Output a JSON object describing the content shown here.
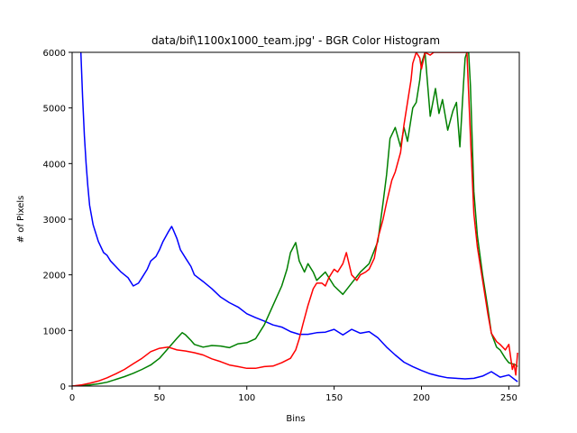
{
  "chart_data": {
    "type": "line",
    "title": "data/bif\\1100x1000_team.jpg' - BGR Color Histogram",
    "xlabel": "Bins",
    "ylabel": "# of Pixels",
    "xlim": [
      0,
      256
    ],
    "ylim": [
      0,
      6000
    ],
    "xticks": [
      0,
      50,
      100,
      150,
      200,
      250
    ],
    "yticks": [
      0,
      1000,
      2000,
      3000,
      4000,
      5000,
      6000
    ],
    "grid": false,
    "legend": "none",
    "series": [
      {
        "color": "#0000ff",
        "x": [
          5,
          6,
          7,
          8,
          9,
          10,
          12,
          15,
          18,
          20,
          22,
          25,
          28,
          30,
          32,
          35,
          38,
          40,
          43,
          45,
          48,
          50,
          52,
          55,
          57,
          58,
          60,
          62,
          65,
          68,
          70,
          75,
          80,
          85,
          90,
          95,
          100,
          105,
          110,
          115,
          120,
          125,
          130,
          135,
          140,
          145,
          150,
          155,
          160,
          165,
          170,
          175,
          180,
          185,
          190,
          195,
          200,
          205,
          210,
          215,
          220,
          225,
          230,
          235,
          240,
          245,
          250,
          255
        ],
        "values": [
          6000,
          5200,
          4500,
          4000,
          3600,
          3250,
          2900,
          2600,
          2400,
          2350,
          2250,
          2150,
          2050,
          2000,
          1950,
          1800,
          1850,
          1950,
          2100,
          2250,
          2330,
          2450,
          2600,
          2770,
          2870,
          2800,
          2650,
          2450,
          2300,
          2150,
          2000,
          1880,
          1750,
          1600,
          1500,
          1420,
          1300,
          1230,
          1170,
          1100,
          1060,
          980,
          930,
          930,
          960,
          970,
          1020,
          920,
          1020,
          950,
          980,
          870,
          700,
          560,
          430,
          350,
          280,
          220,
          180,
          150,
          140,
          130,
          140,
          180,
          260,
          160,
          200,
          80
        ]
      },
      {
        "color": "#008000",
        "x": [
          0,
          5,
          10,
          15,
          20,
          25,
          30,
          35,
          40,
          45,
          50,
          55,
          60,
          63,
          65,
          68,
          70,
          75,
          80,
          85,
          90,
          95,
          100,
          105,
          110,
          115,
          120,
          123,
          125,
          128,
          130,
          133,
          135,
          138,
          140,
          145,
          150,
          155,
          160,
          165,
          170,
          175,
          178,
          180,
          182,
          185,
          188,
          190,
          192,
          195,
          197,
          199,
          200,
          202,
          205,
          208,
          210,
          212,
          215,
          218,
          220,
          222,
          224,
          225,
          226,
          227,
          228,
          230,
          232,
          235,
          238,
          240,
          243,
          245,
          248,
          250,
          252,
          254,
          255
        ],
        "values": [
          0,
          10,
          20,
          40,
          70,
          120,
          170,
          230,
          300,
          380,
          500,
          680,
          860,
          960,
          920,
          820,
          750,
          700,
          730,
          720,
          690,
          760,
          780,
          850,
          1100,
          1450,
          1800,
          2100,
          2400,
          2580,
          2250,
          2050,
          2200,
          2050,
          1900,
          2050,
          1800,
          1650,
          1850,
          2050,
          2200,
          2600,
          3300,
          3800,
          4450,
          4650,
          4300,
          4650,
          4400,
          5000,
          5100,
          5500,
          5800,
          6000,
          4850,
          5350,
          4900,
          5150,
          4600,
          4950,
          5100,
          4300,
          5400,
          5900,
          6000,
          6000,
          5400,
          3500,
          2700,
          2000,
          1400,
          950,
          700,
          650,
          500,
          420,
          400,
          380,
          350
        ]
      },
      {
        "color": "#ff0000",
        "x": [
          0,
          5,
          10,
          15,
          20,
          25,
          30,
          35,
          40,
          45,
          50,
          55,
          60,
          65,
          70,
          75,
          80,
          85,
          90,
          95,
          100,
          105,
          110,
          115,
          120,
          125,
          128,
          130,
          132,
          135,
          138,
          140,
          143,
          145,
          147,
          150,
          152,
          155,
          157,
          160,
          163,
          165,
          168,
          170,
          173,
          175,
          178,
          180,
          183,
          185,
          188,
          190,
          192,
          194,
          195,
          197,
          199,
          200,
          202,
          205,
          207,
          210,
          213,
          215,
          218,
          220,
          222,
          224,
          225,
          226,
          228,
          230,
          232,
          235,
          238,
          240,
          243,
          245,
          248,
          250,
          252,
          253,
          254,
          255
        ],
        "values": [
          0,
          20,
          50,
          90,
          150,
          220,
          300,
          400,
          500,
          620,
          680,
          700,
          650,
          630,
          600,
          560,
          490,
          440,
          380,
          350,
          320,
          320,
          350,
          360,
          420,
          500,
          650,
          850,
          1100,
          1450,
          1750,
          1850,
          1850,
          1800,
          1950,
          2100,
          2050,
          2200,
          2400,
          2000,
          1900,
          2000,
          2050,
          2100,
          2300,
          2650,
          3000,
          3300,
          3700,
          3850,
          4200,
          4700,
          5100,
          5500,
          5800,
          6000,
          5900,
          5700,
          6000,
          5950,
          6000,
          6000,
          6000,
          6000,
          6000,
          6000,
          6000,
          6000,
          6000,
          6000,
          4500,
          3100,
          2500,
          1900,
          1300,
          950,
          800,
          750,
          650,
          750,
          300,
          400,
          200,
          600
        ]
      }
    ]
  }
}
